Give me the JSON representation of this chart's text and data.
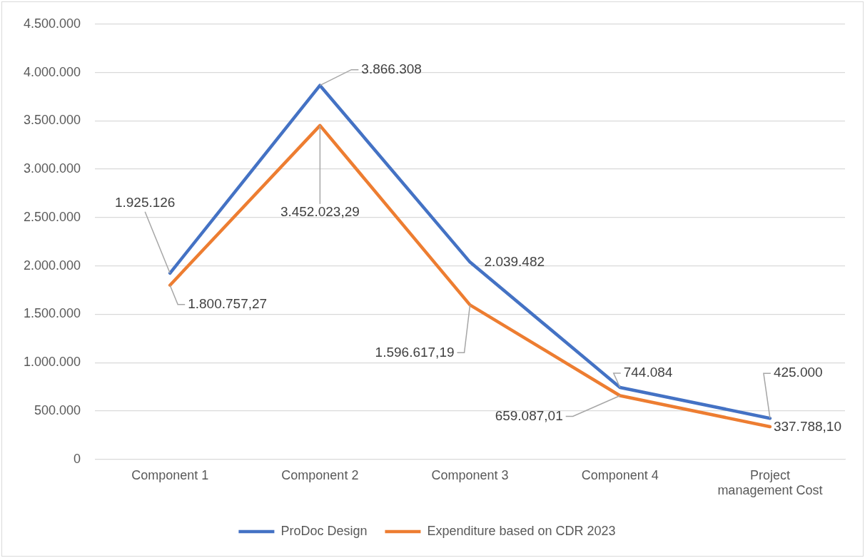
{
  "chart_data": {
    "type": "line",
    "categories": [
      "Component 1",
      "Component 2",
      "Component 3",
      "Component 4",
      "Project management Cost"
    ],
    "series": [
      {
        "name": "ProDoc Design",
        "color": "#4472c4",
        "values": [
          1925126,
          3866308,
          2039482,
          744084,
          425000
        ],
        "value_labels": [
          "1.925.126",
          "3.866.308",
          "2.039.482",
          "744.084",
          "425.000"
        ]
      },
      {
        "name": "Expenditure based on CDR 2023",
        "color": "#ed7d31",
        "values": [
          1800757.27,
          3452023.29,
          1596617.19,
          659087.01,
          337788.1
        ],
        "value_labels": [
          "1.800.757,27",
          "3.452.023,29",
          "1.596.617,19",
          "659.087,01",
          "337.788,10"
        ]
      }
    ],
    "ylim": [
      0,
      4500000
    ],
    "yticks": [
      {
        "value": 0,
        "label": "0"
      },
      {
        "value": 500000,
        "label": "500.000"
      },
      {
        "value": 1000000,
        "label": "1.000.000"
      },
      {
        "value": 1500000,
        "label": "1.500.000"
      },
      {
        "value": 2000000,
        "label": "2.000.000"
      },
      {
        "value": 2500000,
        "label": "2.500.000"
      },
      {
        "value": 3000000,
        "label": "3.000.000"
      },
      {
        "value": 3500000,
        "label": "3.500.000"
      },
      {
        "value": 4000000,
        "label": "4.000.000"
      },
      {
        "value": 4500000,
        "label": "4.500.000"
      }
    ],
    "grid": "y",
    "legend": "bottom",
    "marker": "none",
    "line_style": "solid"
  }
}
